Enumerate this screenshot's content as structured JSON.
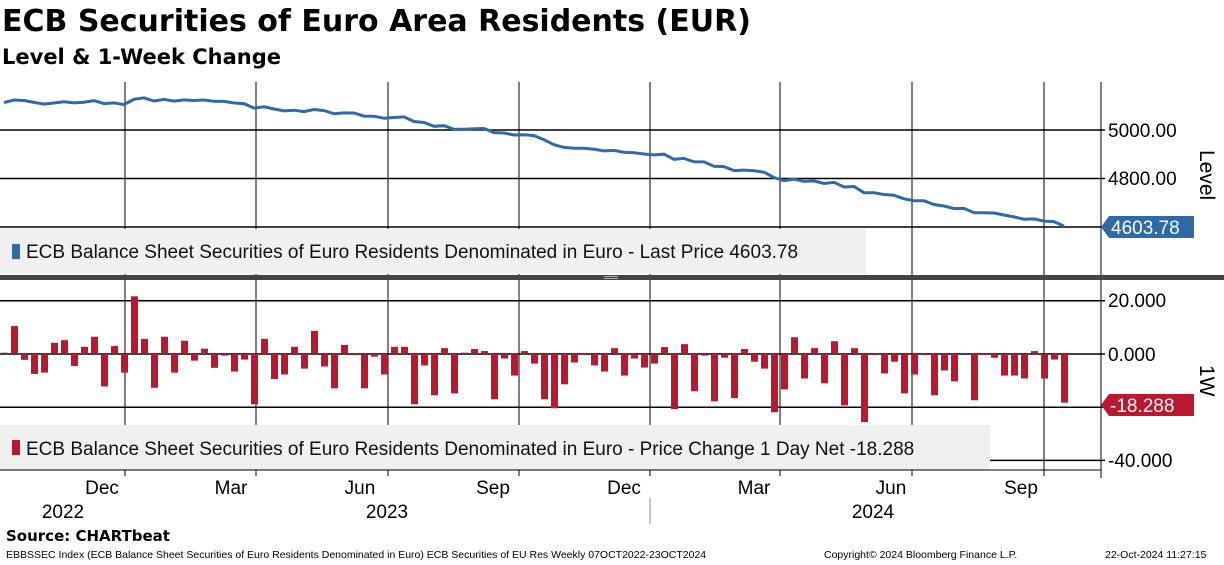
{
  "header": {
    "title": "ECB Securities of Euro Area Residents (EUR)",
    "subtitle": "Level & 1-Week Change"
  },
  "colors": {
    "level": "#2e6aa8",
    "change": "#bb172f",
    "legend_bg": "#f0f0f0"
  },
  "chart_data": [
    {
      "type": "line",
      "panel": "top",
      "ylabel": "Level",
      "ylim": [
        4400,
        5200
      ],
      "yticks": [
        "5000.00",
        "4800.00"
      ],
      "ytick_values": [
        5000,
        4800,
        4600
      ],
      "last_value_label": "4603.78",
      "last_value": 4603.78,
      "legend": "ECB Balance Sheet Securities of Euro Residents Denominated in Euro - Last Price 4603.78",
      "note": "weekly level series; derived by accumulating the 1W changes back from the last value"
    },
    {
      "type": "bar",
      "panel": "bottom",
      "ylabel": "1W",
      "ylim": [
        -43,
        26
      ],
      "yticks": [
        "20.000",
        "0.000",
        "-40.000"
      ],
      "ytick_values": [
        20,
        0,
        -20,
        -40
      ],
      "last_value_label": "-18.288",
      "legend": "ECB Balance Sheet Securities of Euro Residents Denominated in Euro - Price Change 1 Day Net -18.288",
      "values": [
        0.5,
        10.5,
        -2.2,
        -7.5,
        -7,
        4.2,
        5.2,
        -4.5,
        2.7,
        6.5,
        -12.2,
        3,
        -7,
        21.7,
        5.7,
        -12.7,
        6.5,
        -7,
        5,
        -2.5,
        2,
        -5.2,
        -0.6,
        -6.6,
        -2.1,
        -18.9,
        5.7,
        -9.4,
        -7.7,
        2.7,
        -5.5,
        8.7,
        -4.7,
        -12.9,
        3.4,
        -0.2,
        -12.9,
        -1,
        -7.7,
        2.7,
        2.7,
        -18.9,
        -4.3,
        -15.5,
        2.2,
        -14.8,
        0.5,
        1.9,
        1.1,
        -17,
        -1.7,
        -8.1,
        1.1,
        -3.6,
        -17,
        -20.4,
        -11.4,
        -3.2,
        -0.3,
        -4.3,
        -6.6,
        2.2,
        -8.1,
        -1.7,
        -5.1,
        -3.6,
        2.6,
        -20.7,
        3.7,
        -14,
        -0.6,
        -17.8,
        -1.4,
        -16.6,
        1.9,
        -2.9,
        -5.5,
        -21.9,
        -13.3,
        6.3,
        -9.2,
        2.2,
        -11,
        4.8,
        -19.3,
        2.2,
        -25.6,
        -0.2,
        -7.3,
        -2.9,
        -14.8,
        -7.7,
        -0.2,
        -15.5,
        -6.2,
        -10.3,
        0.4,
        -17.4,
        -0.2,
        -1.4,
        -8.1,
        -8.1,
        -9.2,
        1.1,
        -9.2,
        -2.1,
        -18.288
      ]
    }
  ],
  "xaxis": {
    "months": [
      "Dec",
      "Mar",
      "Jun",
      "Sep",
      "Dec",
      "Mar",
      "Jun",
      "Sep"
    ],
    "years": [
      "2022",
      "2023",
      "2024"
    ]
  },
  "footer": {
    "source": "Source: CHARTbeat",
    "ticker": "EBBSSEC Index (ECB Balance Sheet Securities of Euro Residents Denominated in Euro) ECB Securities of EU Res  Weekly 07OCT2022-23OCT2024",
    "copyright": "Copyright© 2024 Bloomberg Finance L.P.",
    "timestamp": "22-Oct-2024 11:27:15"
  }
}
